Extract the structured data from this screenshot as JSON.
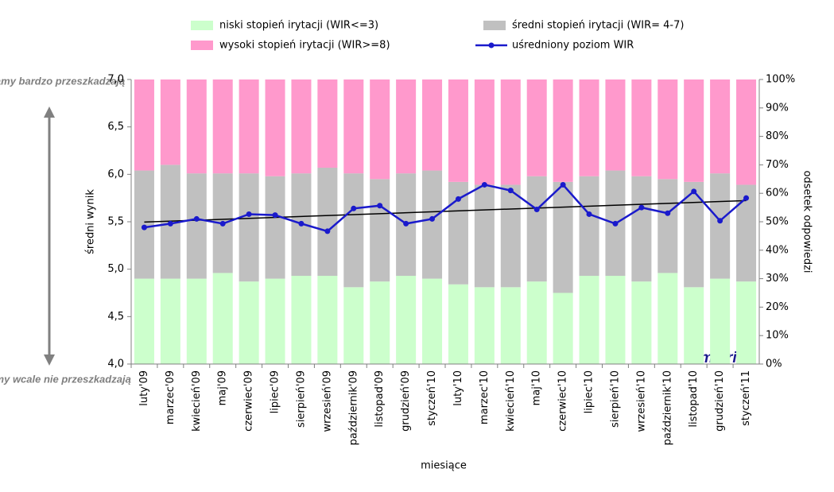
{
  "chart_data": {
    "type": "stacked-bar-line",
    "annotations": [
      "reklamy bardzo przeszkadzają",
      "reklamy wcale nie przeszkadzają",
      "metrics"
    ],
    "xlabel": "miesiące",
    "ylabel": "średni wynik",
    "y2label": "odsetek odpowiedzi",
    "categories": [
      "luty'09",
      "marzec'09",
      "kwiecień'09",
      "maj'09",
      "czerwiec'09",
      "lipiec'09",
      "sierpień'09",
      "wrzesień'09",
      "październik'09",
      "listopad'09",
      "grudzień'09",
      "styczeń'10",
      "luty'10",
      "marzec'10",
      "kwiecień'10",
      "maj'10",
      "czerwiec'10",
      "lipiec'10",
      "sierpień'10",
      "wrzesień'10",
      "październik'10",
      "listopad'10",
      "grudzień'10",
      "styczeń'11"
    ],
    "series": [
      {
        "name": "niski stopień irytacji (WIR<=3)",
        "color": "#ccffcc",
        "axis": "y2",
        "kind": "bar",
        "values": [
          30,
          30,
          30,
          32,
          29,
          30,
          31,
          31,
          27,
          29,
          31,
          30,
          28,
          27,
          27,
          29,
          25,
          31,
          31,
          29,
          32,
          27,
          30,
          29
        ]
      },
      {
        "name": "średni stopień irytacji (WIR= 4-7)",
        "color": "#c0c0c0",
        "axis": "y2",
        "kind": "bar",
        "values": [
          38,
          40,
          37,
          35,
          38,
          36,
          36,
          38,
          40,
          36,
          36,
          38,
          36,
          36,
          36,
          37,
          39,
          35,
          37,
          37,
          33,
          37,
          37,
          34
        ]
      },
      {
        "name": "wysoki stopień irytacji (WIR>=8)",
        "color": "#ff99cc",
        "axis": "y2",
        "kind": "bar",
        "values": [
          32,
          30,
          33,
          33,
          33,
          34,
          33,
          31,
          33,
          35,
          33,
          32,
          36,
          37,
          37,
          34,
          36,
          34,
          32,
          34,
          35,
          36,
          33,
          37
        ]
      },
      {
        "name": "uśredniony poziom WIR",
        "color": "#1a1acc",
        "axis": "y",
        "kind": "line",
        "values": [
          5.44,
          5.48,
          5.53,
          5.48,
          5.58,
          5.57,
          5.48,
          5.4,
          5.64,
          5.67,
          5.48,
          5.53,
          5.74,
          5.89,
          5.83,
          5.63,
          5.89,
          5.58,
          5.48,
          5.65,
          5.59,
          5.82,
          5.51,
          5.75
        ]
      }
    ],
    "trendline": true,
    "ylim": [
      4,
      7
    ],
    "yticks": [
      {
        "value": 4,
        "label": "4,0"
      },
      {
        "value": 4.5,
        "label": "4,5"
      },
      {
        "value": 5,
        "label": "5,0"
      },
      {
        "value": 5.5,
        "label": "5,5"
      },
      {
        "value": 6,
        "label": "6,0"
      },
      {
        "value": 6.5,
        "label": "6,5"
      },
      {
        "value": 7,
        "label": "7,0"
      }
    ],
    "y2lim": [
      0,
      100
    ],
    "y2ticks": [
      {
        "value": 0,
        "label": "0%"
      },
      {
        "value": 10,
        "label": "10%"
      },
      {
        "value": 20,
        "label": "20%"
      },
      {
        "value": 30,
        "label": "30%"
      },
      {
        "value": 40,
        "label": "40%"
      },
      {
        "value": 50,
        "label": "50%"
      },
      {
        "value": 60,
        "label": "60%"
      },
      {
        "value": 70,
        "label": "70%"
      },
      {
        "value": 80,
        "label": "80%"
      },
      {
        "value": 90,
        "label": "90%"
      },
      {
        "value": 100,
        "label": "100%"
      }
    ]
  }
}
